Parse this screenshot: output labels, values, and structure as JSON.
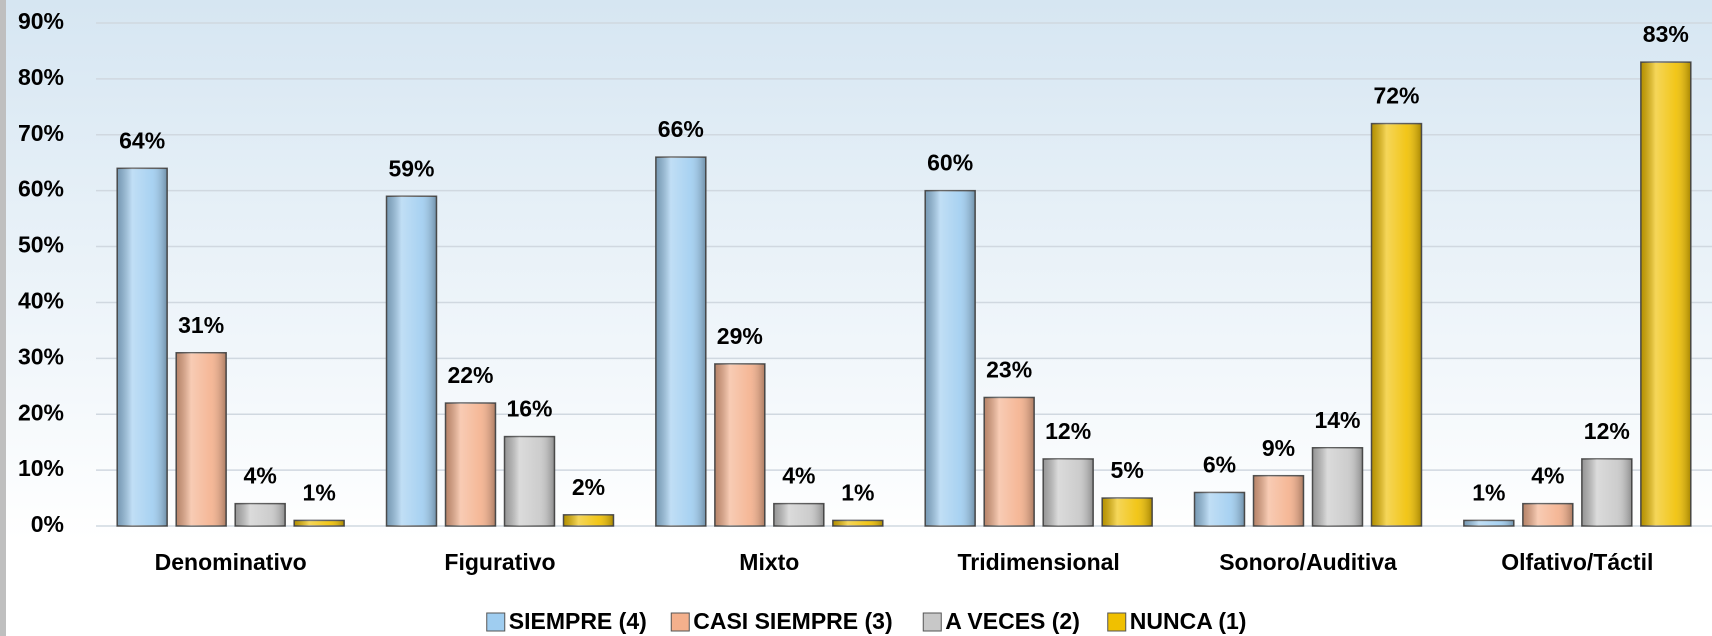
{
  "chart_data": {
    "type": "bar",
    "categories": [
      "Denominativo",
      "Figurativo",
      "Mixto",
      "Tridimensional",
      "Sonoro/Auditiva",
      "Olfativo/Táctil"
    ],
    "series": [
      {
        "name": "SIEMPRE (4)",
        "color": "#9fcdf0",
        "values": [
          64,
          59,
          66,
          60,
          6,
          1
        ],
        "value_labels": [
          "64%",
          "59%",
          "66%",
          "60%",
          "6%",
          "1%"
        ]
      },
      {
        "name": "CASI SIEMPRE (3)",
        "color": "#f4b08c",
        "values": [
          31,
          22,
          29,
          23,
          9,
          4
        ],
        "value_labels": [
          "31%",
          "22%",
          "29%",
          "23%",
          "9%",
          "4%"
        ]
      },
      {
        "name": "A VECES (2)",
        "color": "#c8c8c8",
        "values": [
          4,
          16,
          4,
          12,
          14,
          12
        ],
        "value_labels": [
          "4%",
          "16%",
          "4%",
          "12%",
          "14%",
          "12%"
        ]
      },
      {
        "name": "NUNCA (1)",
        "color": "#f0c000",
        "values": [
          1,
          2,
          1,
          5,
          72,
          83
        ],
        "value_labels": [
          "1%",
          "2%",
          "1%",
          "5%",
          "72%",
          "83%"
        ]
      }
    ],
    "ylim": [
      0,
      90
    ],
    "yticks": [
      {
        "value": 0,
        "label": "0%"
      },
      {
        "value": 10,
        "label": "10%"
      },
      {
        "value": 20,
        "label": "20%"
      },
      {
        "value": 30,
        "label": "30%"
      },
      {
        "value": 40,
        "label": "40%"
      },
      {
        "value": 50,
        "label": "50%"
      },
      {
        "value": 60,
        "label": "60%"
      },
      {
        "value": 70,
        "label": "70%"
      },
      {
        "value": 80,
        "label": "80%"
      },
      {
        "value": 90,
        "label": "90%"
      }
    ],
    "grid": true,
    "legend": "bottom"
  }
}
